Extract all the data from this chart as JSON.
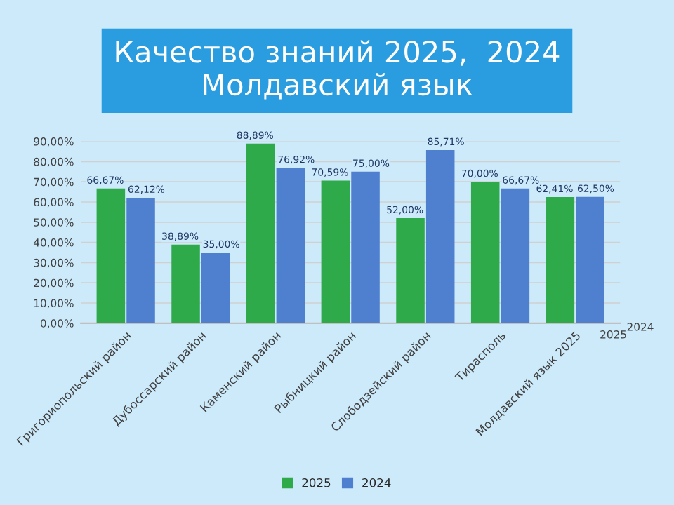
{
  "chart_data": {
    "type": "bar",
    "title": "Качество знаний 2025,  2024\nМолдавский язык",
    "categories": [
      "Григориопольский район",
      "Дубоссарский район",
      "Каменский район",
      "Рыбницкий район",
      "Слободзейский район",
      "Тирасполь",
      "Молдавский язык 2025"
    ],
    "series": [
      {
        "name": "2025",
        "color": "#2eaa4a",
        "values": [
          66.67,
          38.89,
          88.89,
          70.59,
          52.0,
          70.0,
          62.41
        ],
        "value_labels": [
          "66,67%",
          "38,89%",
          "88,89%",
          "70,59%",
          "52,00%",
          "70,00%",
          "62,41%"
        ]
      },
      {
        "name": "2024",
        "color": "#4f7fcf",
        "values": [
          62.12,
          35.0,
          76.92,
          75.0,
          85.71,
          66.67,
          62.5
        ],
        "value_labels": [
          "62,12%",
          "35,00%",
          "76,92%",
          "75,00%",
          "85,71%",
          "66,67%",
          "62,50%"
        ]
      }
    ],
    "ylim": [
      0,
      90
    ],
    "yticks": [
      {
        "value": 0,
        "label": "0,00%"
      },
      {
        "value": 10,
        "label": "10,00%"
      },
      {
        "value": 20,
        "label": "20,00%"
      },
      {
        "value": 30,
        "label": "30,00%"
      },
      {
        "value": 40,
        "label": "40,00%"
      },
      {
        "value": 50,
        "label": "50,00%"
      },
      {
        "value": 60,
        "label": "60,00%"
      },
      {
        "value": 70,
        "label": "70,00%"
      },
      {
        "value": 80,
        "label": "80,00%"
      },
      {
        "value": 90,
        "label": "90,00%"
      }
    ],
    "grid": "y",
    "legend": "bottom",
    "annotations": [
      "2025",
      "2024"
    ]
  }
}
